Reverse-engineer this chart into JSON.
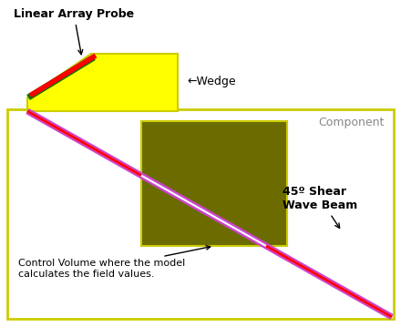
{
  "bg_color": "#ffffff",
  "border_color": "#cccc00",
  "wedge_color": "#ffff00",
  "wedge_border_color": "#cccc00",
  "probe_red_color": "#ff0000",
  "probe_green_color": "#007700",
  "control_volume_color": "#6b6b00",
  "beam_color": "#ff0000",
  "beam_magenta_color": "#cc44cc",
  "beam_white_color": "#ffffff",
  "title": "Linear Array Probe",
  "wedge_label": "←Wedge",
  "component_label": "Component",
  "shear_label": "45º Shear\nWave Beam",
  "cv_label": "Control Volume where the model\ncalculates the field values.",
  "text_color": "#000000",
  "gray_text_color": "#888888",
  "fig_width": 4.4,
  "fig_height": 3.59,
  "dpi": 100
}
